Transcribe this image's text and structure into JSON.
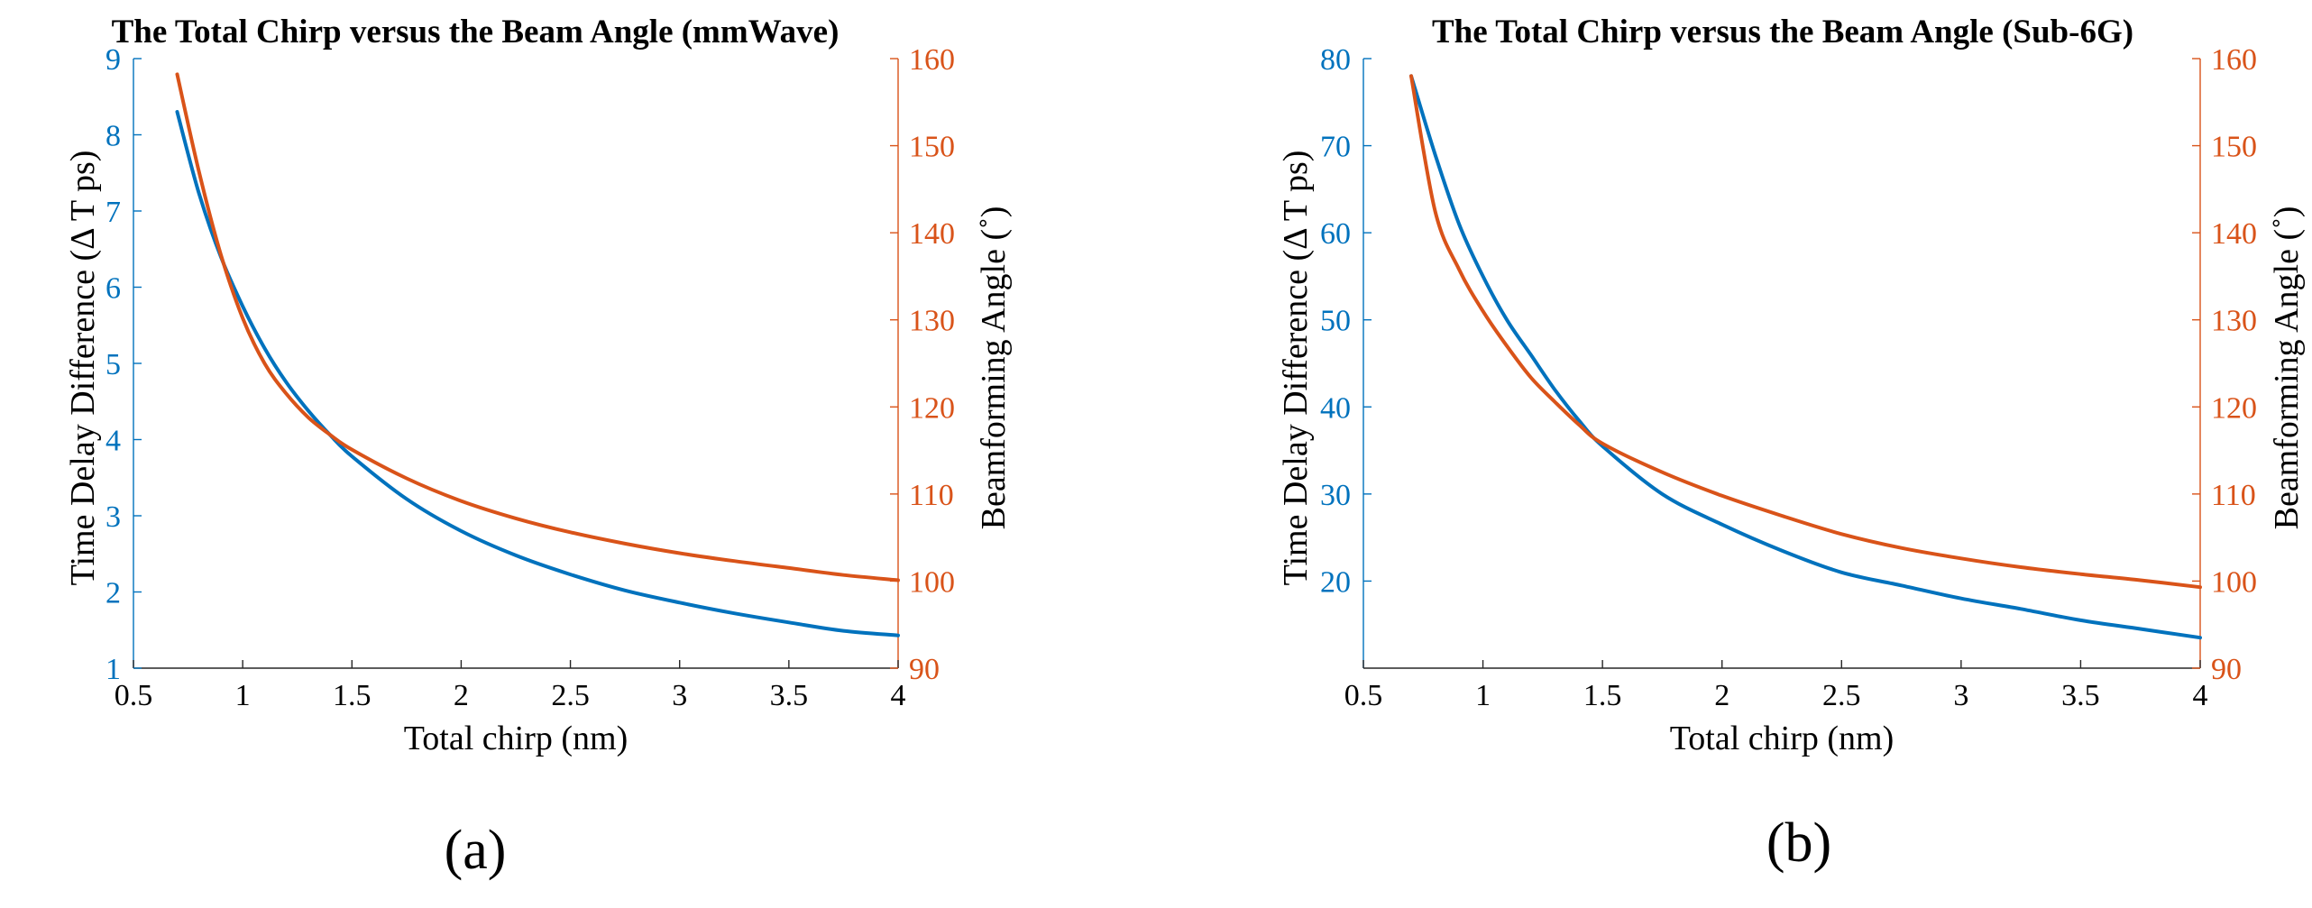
{
  "colors": {
    "left": "#0072BD",
    "right": "#D95319",
    "axis": "#262626",
    "text": "#000000"
  },
  "chart_data": [
    {
      "type": "line",
      "panel_label": "(a)",
      "title": "The Total Chirp versus the Beam Angle (mmWave)",
      "xlabel": "Total chirp (nm)",
      "ylabel_left": "Time Delay Difference (Δ T ps)",
      "ylabel_right": "Beamforming Angle (˚)",
      "xlim": [
        0.5,
        4
      ],
      "xticks": [
        "0.5",
        "1",
        "1.5",
        "2",
        "2.5",
        "3",
        "3.5",
        "4"
      ],
      "ylim_left": [
        1,
        9
      ],
      "yticks_left": [
        "1",
        "2",
        "3",
        "4",
        "5",
        "6",
        "7",
        "8",
        "9"
      ],
      "ylim_right": [
        90,
        160
      ],
      "yticks_right": [
        "90",
        "100",
        "110",
        "120",
        "130",
        "140",
        "150",
        "160"
      ],
      "series": [
        {
          "name": "Time delay difference",
          "axis": "left",
          "x": [
            0.7,
            0.8,
            0.9,
            1.0,
            1.1,
            1.2,
            1.3,
            1.4,
            1.5,
            1.75,
            2.0,
            2.25,
            2.5,
            2.75,
            3.0,
            3.25,
            3.5,
            3.75,
            4.0
          ],
          "y": [
            8.3,
            7.23,
            6.4,
            5.75,
            5.2,
            4.75,
            4.38,
            4.06,
            3.78,
            3.22,
            2.8,
            2.48,
            2.23,
            2.02,
            1.86,
            1.72,
            1.6,
            1.49,
            1.43
          ]
        },
        {
          "name": "Beamforming angle",
          "axis": "right",
          "x": [
            0.7,
            0.8,
            0.9,
            1.0,
            1.1,
            1.2,
            1.3,
            1.4,
            1.5,
            1.75,
            2.0,
            2.25,
            2.5,
            2.75,
            3.0,
            3.25,
            3.5,
            3.75,
            4.0
          ],
          "y": [
            158.2,
            147,
            137.5,
            130.2,
            125,
            121.5,
            118.8,
            116.8,
            115.1,
            111.8,
            109.2,
            107.2,
            105.6,
            104.3,
            103.2,
            102.3,
            101.5,
            100.7,
            100.1
          ]
        }
      ]
    },
    {
      "type": "line",
      "panel_label": "(b)",
      "title": "The Total Chirp versus the Beam Angle (Sub-6G)",
      "xlabel": "Total chirp (nm)",
      "ylabel_left": "Time Delay Difference (Δ T ps)",
      "ylabel_right": "Beamforming Angle (˚)",
      "xlim": [
        0.5,
        4
      ],
      "xticks": [
        "0.5",
        "1",
        "1.5",
        "2",
        "2.5",
        "3",
        "3.5",
        "4"
      ],
      "ylim_left": [
        10,
        80
      ],
      "yticks_left": [
        "20",
        "30",
        "40",
        "50",
        "60",
        "70",
        "80"
      ],
      "ylim_right": [
        90,
        160
      ],
      "yticks_right": [
        "90",
        "100",
        "110",
        "120",
        "130",
        "140",
        "150",
        "160"
      ],
      "series": [
        {
          "name": "Time delay difference",
          "axis": "left",
          "x": [
            0.7,
            0.8,
            0.9,
            1.0,
            1.1,
            1.2,
            1.3,
            1.4,
            1.5,
            1.75,
            2.0,
            2.25,
            2.5,
            2.75,
            3.0,
            3.25,
            3.5,
            3.75,
            4.0
          ],
          "y": [
            78,
            69,
            61,
            55,
            50,
            46,
            42,
            38.5,
            35.5,
            30,
            26.5,
            23.5,
            21,
            19.5,
            18,
            16.8,
            15.5,
            14.5,
            13.5
          ]
        },
        {
          "name": "Beamforming angle",
          "axis": "right",
          "x": [
            0.7,
            0.8,
            0.9,
            1.0,
            1.1,
            1.2,
            1.3,
            1.4,
            1.5,
            1.75,
            2.0,
            2.25,
            2.5,
            2.75,
            3.0,
            3.25,
            3.5,
            3.75,
            4.0
          ],
          "y": [
            158,
            142.5,
            135.8,
            131,
            127,
            123.4,
            120.6,
            118,
            115.8,
            112.5,
            109.8,
            107.5,
            105.4,
            103.8,
            102.6,
            101.6,
            100.8,
            100.1,
            99.3
          ]
        }
      ]
    }
  ]
}
